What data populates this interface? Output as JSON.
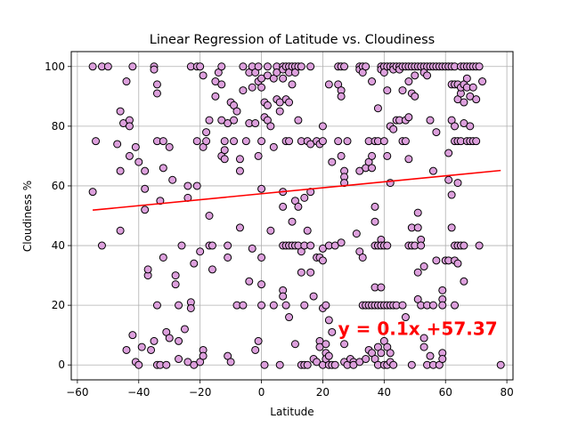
{
  "chart_data": {
    "type": "scatter",
    "title": "Linear Regression of Latitude vs. Cloudiness",
    "xlabel": "Latitude",
    "ylabel": "Cloudiness %",
    "xlim": [
      -62,
      82
    ],
    "ylim": [
      -5,
      105
    ],
    "xticks": [
      -60,
      -40,
      -20,
      0,
      20,
      40,
      60,
      80
    ],
    "yticks": [
      0,
      20,
      40,
      60,
      80,
      100
    ],
    "grid": true,
    "marker_color": "#dda0dd",
    "marker_edge": "#000000",
    "regression": {
      "slope": 0.1,
      "intercept": 57.37,
      "x_range": [
        -55,
        78
      ],
      "color": "#ff0000"
    },
    "annotation": {
      "text": "y = 0.1x +57.37",
      "x": 25,
      "y": 10
    },
    "points": [
      [
        -55,
        100
      ],
      [
        -52,
        100
      ],
      [
        -50,
        100
      ],
      [
        -54,
        75
      ],
      [
        -52,
        40
      ],
      [
        -55,
        58
      ],
      [
        -47,
        74
      ],
      [
        -46,
        85
      ],
      [
        -45,
        81
      ],
      [
        -44,
        95
      ],
      [
        -43,
        82
      ],
      [
        -43,
        80
      ],
      [
        -43,
        70
      ],
      [
        -42,
        100
      ],
      [
        -41,
        73
      ],
      [
        -40,
        68
      ],
      [
        -46,
        65
      ],
      [
        -46,
        45
      ],
      [
        -44,
        5
      ],
      [
        -42,
        10
      ],
      [
        -41,
        1
      ],
      [
        -40,
        0
      ],
      [
        -39,
        6
      ],
      [
        -38,
        65
      ],
      [
        -38,
        59
      ],
      [
        -38,
        52
      ],
      [
        -37,
        30
      ],
      [
        -37,
        32
      ],
      [
        -35,
        100
      ],
      [
        -35,
        99
      ],
      [
        -34,
        94
      ],
      [
        -34,
        91
      ],
      [
        -34,
        75
      ],
      [
        -32,
        75
      ],
      [
        -33,
        55
      ],
      [
        -34,
        20
      ],
      [
        -35,
        8
      ],
      [
        -36,
        5
      ],
      [
        -34,
        0
      ],
      [
        -33,
        0
      ],
      [
        -32,
        66
      ],
      [
        -32,
        36
      ],
      [
        -31,
        11
      ],
      [
        -31,
        0
      ],
      [
        -30,
        73
      ],
      [
        -30,
        9
      ],
      [
        -29,
        62
      ],
      [
        -28,
        30
      ],
      [
        -28,
        27
      ],
      [
        -27,
        20
      ],
      [
        -27,
        8
      ],
      [
        -27,
        2
      ],
      [
        -26,
        40
      ],
      [
        -25,
        12
      ],
      [
        -24,
        60
      ],
      [
        -24,
        56
      ],
      [
        -24,
        1
      ],
      [
        -23,
        21
      ],
      [
        -23,
        19
      ],
      [
        -22,
        34
      ],
      [
        -22,
        0
      ],
      [
        -21,
        75
      ],
      [
        -21,
        60
      ],
      [
        -20,
        38
      ],
      [
        -23,
        100
      ],
      [
        -21,
        100
      ],
      [
        -20,
        100
      ],
      [
        -19,
        97
      ],
      [
        -19,
        73
      ],
      [
        -20,
        1
      ],
      [
        -19,
        5
      ],
      [
        -19,
        3
      ],
      [
        -18,
        78
      ],
      [
        -18,
        75
      ],
      [
        -17,
        82
      ],
      [
        -17,
        50
      ],
      [
        -17,
        40
      ],
      [
        -16,
        40
      ],
      [
        -16,
        32
      ],
      [
        -15,
        95
      ],
      [
        -15,
        90
      ],
      [
        -14,
        98
      ],
      [
        -13,
        100
      ],
      [
        -13,
        94
      ],
      [
        -13,
        82
      ],
      [
        -13,
        70
      ],
      [
        -12,
        72
      ],
      [
        -12,
        69
      ],
      [
        -12,
        75
      ],
      [
        -11,
        81
      ],
      [
        -11,
        40
      ],
      [
        -11,
        36
      ],
      [
        -11,
        3
      ],
      [
        -10,
        88
      ],
      [
        -10,
        1
      ],
      [
        -9,
        87
      ],
      [
        -9,
        82
      ],
      [
        -9,
        75
      ],
      [
        -8,
        85
      ],
      [
        -8,
        20
      ],
      [
        -7,
        69
      ],
      [
        -7,
        65
      ],
      [
        -7,
        46
      ],
      [
        -6,
        100
      ],
      [
        -6,
        92
      ],
      [
        -6,
        20
      ],
      [
        -5,
        75
      ],
      [
        -4,
        98
      ],
      [
        -4,
        81
      ],
      [
        -4,
        28
      ],
      [
        -3,
        100
      ],
      [
        -3,
        93
      ],
      [
        -3,
        39
      ],
      [
        -2,
        98
      ],
      [
        -2,
        81
      ],
      [
        -2,
        5
      ],
      [
        -1,
        100
      ],
      [
        -1,
        95
      ],
      [
        -1,
        70
      ],
      [
        -1,
        8
      ],
      [
        0,
        96
      ],
      [
        0,
        93
      ],
      [
        0,
        75
      ],
      [
        0,
        59
      ],
      [
        0,
        36
      ],
      [
        0,
        27
      ],
      [
        0,
        20
      ],
      [
        1,
        88
      ],
      [
        1,
        83
      ],
      [
        1,
        0
      ],
      [
        2,
        100
      ],
      [
        2,
        97
      ],
      [
        2,
        82
      ],
      [
        2,
        87
      ],
      [
        3,
        80
      ],
      [
        3,
        45
      ],
      [
        4,
        96
      ],
      [
        4,
        73
      ],
      [
        4,
        20
      ],
      [
        5,
        100
      ],
      [
        5,
        98
      ],
      [
        5,
        89
      ],
      [
        6,
        88
      ],
      [
        6,
        85
      ],
      [
        6,
        0
      ],
      [
        7,
        100
      ],
      [
        7,
        99
      ],
      [
        7,
        96
      ],
      [
        7,
        58
      ],
      [
        7,
        53
      ],
      [
        7,
        40
      ],
      [
        7,
        25
      ],
      [
        7,
        23
      ],
      [
        8,
        100
      ],
      [
        8,
        89
      ],
      [
        8,
        75
      ],
      [
        8,
        40
      ],
      [
        8,
        20
      ],
      [
        9,
        100
      ],
      [
        9,
        98
      ],
      [
        9,
        88
      ],
      [
        9,
        75
      ],
      [
        9,
        40
      ],
      [
        9,
        16
      ],
      [
        10,
        100
      ],
      [
        10,
        94
      ],
      [
        10,
        48
      ],
      [
        10,
        40
      ],
      [
        11,
        100
      ],
      [
        11,
        98
      ],
      [
        11,
        55
      ],
      [
        11,
        40
      ],
      [
        11,
        7
      ],
      [
        12,
        100
      ],
      [
        12,
        82
      ],
      [
        12,
        53
      ],
      [
        12,
        40
      ],
      [
        13,
        100
      ],
      [
        13,
        75
      ],
      [
        13,
        38
      ],
      [
        13,
        31
      ],
      [
        13,
        0
      ],
      [
        14,
        40
      ],
      [
        14,
        56
      ],
      [
        14,
        20
      ],
      [
        14,
        0
      ],
      [
        15,
        75
      ],
      [
        15,
        45
      ],
      [
        15,
        0
      ],
      [
        16,
        100
      ],
      [
        16,
        74
      ],
      [
        16,
        58
      ],
      [
        16,
        40
      ],
      [
        16,
        31
      ],
      [
        17,
        23
      ],
      [
        17,
        2
      ],
      [
        18,
        75
      ],
      [
        18,
        36
      ],
      [
        18,
        1
      ],
      [
        19,
        74
      ],
      [
        19,
        36
      ],
      [
        19,
        8
      ],
      [
        19,
        6
      ],
      [
        20,
        80
      ],
      [
        20,
        75
      ],
      [
        20,
        39
      ],
      [
        20,
        35
      ],
      [
        20,
        19
      ],
      [
        20,
        0
      ],
      [
        21,
        20
      ],
      [
        21,
        7
      ],
      [
        21,
        4
      ],
      [
        21,
        2
      ],
      [
        22,
        94
      ],
      [
        22,
        40
      ],
      [
        22,
        15
      ],
      [
        22,
        3
      ],
      [
        22,
        0
      ],
      [
        23,
        68
      ],
      [
        23,
        11
      ],
      [
        23,
        0
      ],
      [
        24,
        40
      ],
      [
        24,
        0
      ],
      [
        25,
        100
      ],
      [
        25,
        94
      ],
      [
        25,
        75
      ],
      [
        26,
        100
      ],
      [
        26,
        92
      ],
      [
        26,
        90
      ],
      [
        26,
        70
      ],
      [
        26,
        41
      ],
      [
        27,
        100
      ],
      [
        27,
        65
      ],
      [
        27,
        63
      ],
      [
        27,
        61
      ],
      [
        27,
        7
      ],
      [
        27,
        1
      ],
      [
        28,
        75
      ],
      [
        28,
        0
      ],
      [
        29,
        2
      ],
      [
        30,
        1
      ],
      [
        30,
        0
      ],
      [
        31,
        44
      ],
      [
        32,
        100
      ],
      [
        32,
        99
      ],
      [
        32,
        65
      ],
      [
        32,
        38
      ],
      [
        32,
        1
      ],
      [
        33,
        100
      ],
      [
        33,
        98
      ],
      [
        33,
        36
      ],
      [
        33,
        20
      ],
      [
        34,
        100
      ],
      [
        34,
        66
      ],
      [
        34,
        20
      ],
      [
        34,
        2
      ],
      [
        35,
        75
      ],
      [
        35,
        68
      ],
      [
        35,
        20
      ],
      [
        35,
        5
      ],
      [
        36,
        95
      ],
      [
        36,
        70
      ],
      [
        36,
        66
      ],
      [
        36,
        20
      ],
      [
        36,
        4
      ],
      [
        37,
        75
      ],
      [
        37,
        53
      ],
      [
        37,
        48
      ],
      [
        37,
        40
      ],
      [
        37,
        26
      ],
      [
        37,
        20
      ],
      [
        37,
        2
      ],
      [
        38,
        86
      ],
      [
        38,
        75
      ],
      [
        38,
        40
      ],
      [
        38,
        20
      ],
      [
        38,
        6
      ],
      [
        38,
        0
      ],
      [
        39,
        100
      ],
      [
        39,
        99
      ],
      [
        39,
        42
      ],
      [
        39,
        40
      ],
      [
        39,
        26
      ],
      [
        39,
        20
      ],
      [
        39,
        4
      ],
      [
        40,
        100
      ],
      [
        40,
        98
      ],
      [
        40,
        75
      ],
      [
        40,
        40
      ],
      [
        40,
        20
      ],
      [
        40,
        8
      ],
      [
        40,
        0
      ],
      [
        41,
        100
      ],
      [
        41,
        92
      ],
      [
        41,
        70
      ],
      [
        41,
        40
      ],
      [
        41,
        20
      ],
      [
        41,
        6
      ],
      [
        41,
        0
      ],
      [
        42,
        100
      ],
      [
        42,
        80
      ],
      [
        42,
        61
      ],
      [
        42,
        20
      ],
      [
        42,
        4
      ],
      [
        42,
        1
      ],
      [
        43,
        100
      ],
      [
        43,
        99
      ],
      [
        43,
        79
      ],
      [
        43,
        20
      ],
      [
        43,
        0
      ],
      [
        44,
        100
      ],
      [
        44,
        82
      ],
      [
        44,
        20
      ],
      [
        45,
        100
      ],
      [
        45,
        99
      ],
      [
        45,
        82
      ],
      [
        46,
        100
      ],
      [
        46,
        92
      ],
      [
        46,
        75
      ],
      [
        46,
        20
      ],
      [
        47,
        100
      ],
      [
        47,
        82
      ],
      [
        47,
        75
      ],
      [
        47,
        16
      ],
      [
        48,
        100
      ],
      [
        48,
        95
      ],
      [
        48,
        83
      ],
      [
        48,
        69
      ],
      [
        48,
        40
      ],
      [
        49,
        100
      ],
      [
        49,
        91
      ],
      [
        49,
        46
      ],
      [
        49,
        40
      ],
      [
        49,
        0
      ],
      [
        50,
        100
      ],
      [
        50,
        97
      ],
      [
        50,
        90
      ],
      [
        50,
        40
      ],
      [
        51,
        100
      ],
      [
        51,
        51
      ],
      [
        51,
        46
      ],
      [
        51,
        31
      ],
      [
        51,
        22
      ],
      [
        52,
        100
      ],
      [
        52,
        42
      ],
      [
        52,
        40
      ],
      [
        52,
        20
      ],
      [
        53,
        100
      ],
      [
        53,
        98
      ],
      [
        53,
        33
      ],
      [
        53,
        9
      ],
      [
        53,
        6
      ],
      [
        54,
        100
      ],
      [
        54,
        97
      ],
      [
        54,
        20
      ],
      [
        54,
        0
      ],
      [
        55,
        100
      ],
      [
        55,
        82
      ],
      [
        55,
        3
      ],
      [
        56,
        100
      ],
      [
        56,
        65
      ],
      [
        56,
        20
      ],
      [
        56,
        0
      ],
      [
        57,
        100
      ],
      [
        57,
        78
      ],
      [
        57,
        35
      ],
      [
        58,
        100
      ],
      [
        58,
        0
      ],
      [
        59,
        100
      ],
      [
        59,
        25
      ],
      [
        59,
        22
      ],
      [
        59,
        20
      ],
      [
        59,
        4
      ],
      [
        59,
        2
      ],
      [
        60,
        100
      ],
      [
        60,
        35
      ],
      [
        61,
        100
      ],
      [
        61,
        62
      ],
      [
        61,
        71
      ],
      [
        61,
        35
      ],
      [
        62,
        100
      ],
      [
        62,
        94
      ],
      [
        62,
        82
      ],
      [
        62,
        57
      ],
      [
        62,
        46
      ],
      [
        63,
        100
      ],
      [
        63,
        94
      ],
      [
        63,
        80
      ],
      [
        63,
        75
      ],
      [
        63,
        40
      ],
      [
        63,
        35
      ],
      [
        63,
        20
      ],
      [
        64,
        94
      ],
      [
        64,
        89
      ],
      [
        64,
        75
      ],
      [
        64,
        61
      ],
      [
        64,
        40
      ],
      [
        64,
        34
      ],
      [
        65,
        100
      ],
      [
        65,
        91
      ],
      [
        65,
        93
      ],
      [
        65,
        75
      ],
      [
        65,
        40
      ],
      [
        66,
        100
      ],
      [
        66,
        94
      ],
      [
        66,
        88
      ],
      [
        66,
        81
      ],
      [
        66,
        40
      ],
      [
        66,
        28
      ],
      [
        67,
        100
      ],
      [
        67,
        96
      ],
      [
        67,
        93
      ],
      [
        67,
        75
      ],
      [
        68,
        100
      ],
      [
        68,
        90
      ],
      [
        68,
        80
      ],
      [
        68,
        75
      ],
      [
        69,
        100
      ],
      [
        69,
        93
      ],
      [
        69,
        75
      ],
      [
        70,
        100
      ],
      [
        70,
        89
      ],
      [
        70,
        75
      ],
      [
        71,
        100
      ],
      [
        71,
        40
      ],
      [
        72,
        95
      ],
      [
        78,
        0
      ]
    ]
  }
}
